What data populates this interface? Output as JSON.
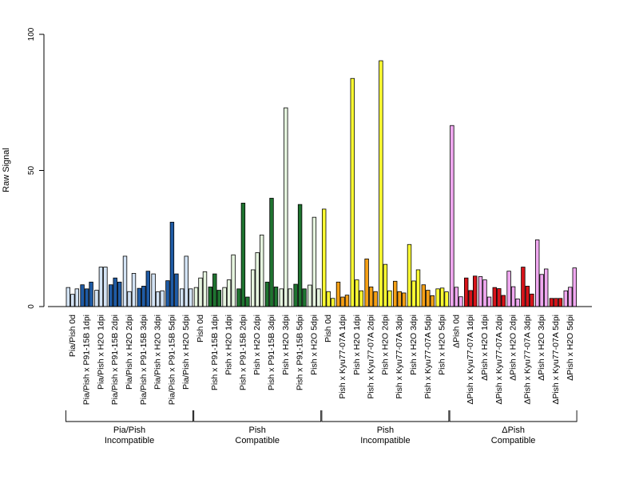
{
  "chart_data": {
    "type": "bar",
    "ylabel": "Raw Signal",
    "ylim": [
      0,
      100
    ],
    "yticks": [
      0,
      50,
      100
    ],
    "grid": false,
    "legend": "none",
    "categories": [
      "Pia/Pish 0d",
      "Pia/Pish x P91-15B 1dpi",
      "Pia/Pish x H2O 1dpi",
      "Pia/Pish x P91-15B 2dpi",
      "Pia/Pish x H2O 2dpi",
      "Pia/Pish x P91-15B 3dpi",
      "Pia/Pish x H2O 3dpi",
      "Pia/Pish x P91-15B 5dpi",
      "Pia/Pish x H2O 5dpi",
      "Pish 0d",
      "Pish x P91-15B 1dpi",
      "Pish x H2O 1dpi",
      "Pish x P91-15B 2dpi",
      "Pish x H2O 2dpi",
      "Pish x P91-15B 3dpi",
      "Pish x H2O 3dpi",
      "Pish x P91-15B 5dpi",
      "Pish x H2O 5dpi",
      "Pish 0d",
      "Pish x Kyu77-07A 1dpi",
      "Pish x H2O 1dpi",
      "Pish x Kyu77-07A 2dpi",
      "Pish x H2O 2dpi",
      "Pish x Kyu77-07A 3dpi",
      "Pish x H2O 3dpi",
      "Pish x Kyu77-07A 5dpi",
      "Pish x H2O 5dpi",
      "ΔPish 0d",
      "ΔPish x Kyu77-07A 1dpi",
      "ΔPish x H2O 1dpi",
      "ΔPish x Kyu77-07A 2dpi",
      "ΔPish x H2O 2dpi",
      "ΔPish x Kyu77-07A 3dpi",
      "ΔPish x H2O 3dpi",
      "ΔPish x Kyu77-07A 5dpi",
      "ΔPish x H2O 5dpi"
    ],
    "values": [
      [
        7,
        4.5,
        6.5
      ],
      [
        8,
        6.5,
        9
      ],
      [
        6,
        14.5,
        14.5
      ],
      [
        8,
        10.5,
        9
      ],
      [
        18.5,
        5.5,
        12.2
      ],
      [
        6.7,
        7.5,
        13
      ],
      [
        12,
        5.4,
        5.8
      ],
      [
        9.5,
        31,
        12
      ],
      [
        6.5,
        18.5,
        6.5
      ],
      [
        7,
        10.5,
        12.8
      ],
      [
        7.2,
        12,
        6
      ],
      [
        7,
        9.8,
        19
      ],
      [
        6.5,
        38,
        3.5
      ],
      [
        13.5,
        19.8,
        26.3
      ],
      [
        9,
        39.8,
        7.2
      ],
      [
        6.5,
        73,
        6.5
      ],
      [
        8.2,
        37.5,
        6.5
      ],
      [
        7.9,
        32.8,
        6.5
      ],
      [
        35.8,
        5.5,
        3
      ],
      [
        9,
        3.5,
        4.2
      ],
      [
        83.8,
        9.8,
        5.8
      ],
      [
        17.5,
        7.2,
        5.5
      ],
      [
        90.3,
        15.5,
        5.8
      ],
      [
        9.3,
        5.5,
        5
      ],
      [
        22.8,
        9.4,
        13.5
      ],
      [
        8,
        6,
        4
      ],
      [
        6.5,
        6.8,
        5.4
      ],
      [
        66.5,
        7.1,
        3.6
      ],
      [
        10.5,
        5.9,
        11.2
      ],
      [
        11,
        9.8,
        3.5
      ],
      [
        7,
        6.6,
        4.1
      ],
      [
        13,
        7.3,
        2.8
      ],
      [
        14.5,
        7.5,
        4.6
      ],
      [
        24.5,
        11.8,
        13.8
      ],
      [
        3,
        3,
        3
      ],
      [
        5.8,
        7.1,
        14.2
      ]
    ],
    "colors": [
      "#d3e3f5",
      "#1f5ba5",
      "#d3e3f5",
      "#1f5ba5",
      "#d3e3f5",
      "#1f5ba5",
      "#d3e3f5",
      "#1f5ba5",
      "#d3e3f5",
      "#e6f5df",
      "#1f7430",
      "#e6f5df",
      "#1f7430",
      "#e6f5df",
      "#1f7430",
      "#e6f5df",
      "#1f7430",
      "#e6f5df",
      "#ffff33",
      "#f5a015",
      "#ffff33",
      "#f5a015",
      "#ffff33",
      "#f5a015",
      "#ffff33",
      "#f5a015",
      "#ffff33",
      "#f0a8f0",
      "#d7141a",
      "#f0a8f0",
      "#d7141a",
      "#f0a8f0",
      "#d7141a",
      "#f0a8f0",
      "#d7141a",
      "#f0a8f0"
    ],
    "groups": [
      {
        "label_line1": "Pia/Pish",
        "label_line2": "Incompatible",
        "from": 0,
        "to": 8
      },
      {
        "label_line1": "Pish",
        "label_line2": "Compatible",
        "from": 9,
        "to": 17
      },
      {
        "label_line1": "Pish",
        "label_line2": "Incompatible",
        "from": 18,
        "to": 26
      },
      {
        "label_line1": "ΔPish",
        "label_line2": "Compatible",
        "from": 27,
        "to": 35
      }
    ]
  }
}
